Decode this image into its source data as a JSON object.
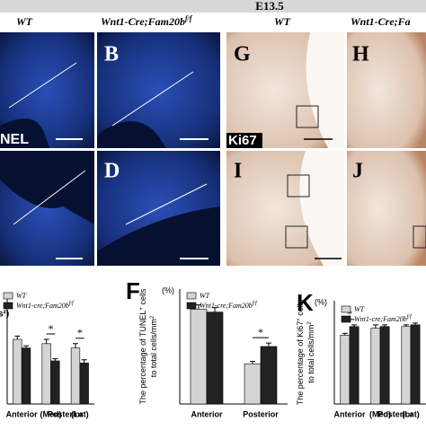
{
  "header": {
    "title": "E13.5"
  },
  "columns": [
    {
      "label": "WT"
    },
    {
      "label": "Wnt1-Cre;Fam20b",
      "sup": "f/f"
    },
    {
      "label": "WT"
    },
    {
      "label": "Wnt1-Cre;Fa"
    }
  ],
  "panels": [
    "B",
    "G",
    "H",
    "D",
    "I",
    "J"
  ],
  "stains": [
    "NEL",
    "Ki67"
  ],
  "chart_data": [
    {
      "type": "bar",
      "label": "s²)",
      "categories": [
        "Anterior",
        "(Med)",
        "(Lat)"
      ],
      "group_label": "Posterior",
      "series": [
        {
          "name": "WT",
          "color": "#d4d4d4",
          "values": [
            60,
            56,
            52
          ],
          "errors": [
            3,
            4,
            4
          ]
        },
        {
          "name": "Wnt1-cre;Fam20b",
          "name_sup": "f/f",
          "color": "#222222",
          "values": [
            52,
            40,
            38
          ],
          "errors": [
            2,
            2,
            3
          ]
        }
      ],
      "ylim": [
        0,
        100
      ],
      "annotations": [
        {
          "text": "*",
          "category": "(Med)"
        },
        {
          "text": "*",
          "category": "(Lat)"
        }
      ]
    },
    {
      "type": "bar",
      "label": "F",
      "unit": "(%)",
      "y_label": [
        "The percentage of TUNEL",
        "+",
        " cells",
        "to total cells/mm",
        "2"
      ],
      "categories": [
        "Anterior",
        "Posterior"
      ],
      "series": [
        {
          "name": "WT",
          "color": "#d4d4d4",
          "values": [
            3.3,
            1.4
          ],
          "errors": [
            0.15,
            0.08
          ]
        },
        {
          "name": "Wnt1-cre;Fam20b",
          "name_sup": "f/f",
          "color": "#222222",
          "values": [
            3.2,
            2.0
          ],
          "errors": [
            0.15,
            0.12
          ]
        }
      ],
      "ylim": [
        0,
        4
      ],
      "annotations": [
        {
          "text": "*",
          "category": "Posterior"
        }
      ]
    },
    {
      "type": "bar",
      "label": "K",
      "unit": "(%)",
      "y_label": [
        "The percentage of Ki67",
        "+",
        " cells",
        "to total cells/mm",
        "2"
      ],
      "categories": [
        "Anterior",
        "(Med)",
        "(Lat)"
      ],
      "group_label": "Posterior",
      "series": [
        {
          "name": "WT",
          "color": "#d4d4d4",
          "values": [
            40,
            44,
            45
          ],
          "errors": [
            1,
            2,
            1
          ]
        },
        {
          "name": "Wnt1-cre;Fam20b",
          "name_sup": "f/f",
          "color": "#222222",
          "values": [
            45,
            45,
            46
          ],
          "errors": [
            1,
            1,
            1
          ]
        }
      ],
      "ylim": [
        0,
        60
      ],
      "annotations": [
        {
          "text": "*",
          "category": "Anterior"
        }
      ]
    }
  ]
}
